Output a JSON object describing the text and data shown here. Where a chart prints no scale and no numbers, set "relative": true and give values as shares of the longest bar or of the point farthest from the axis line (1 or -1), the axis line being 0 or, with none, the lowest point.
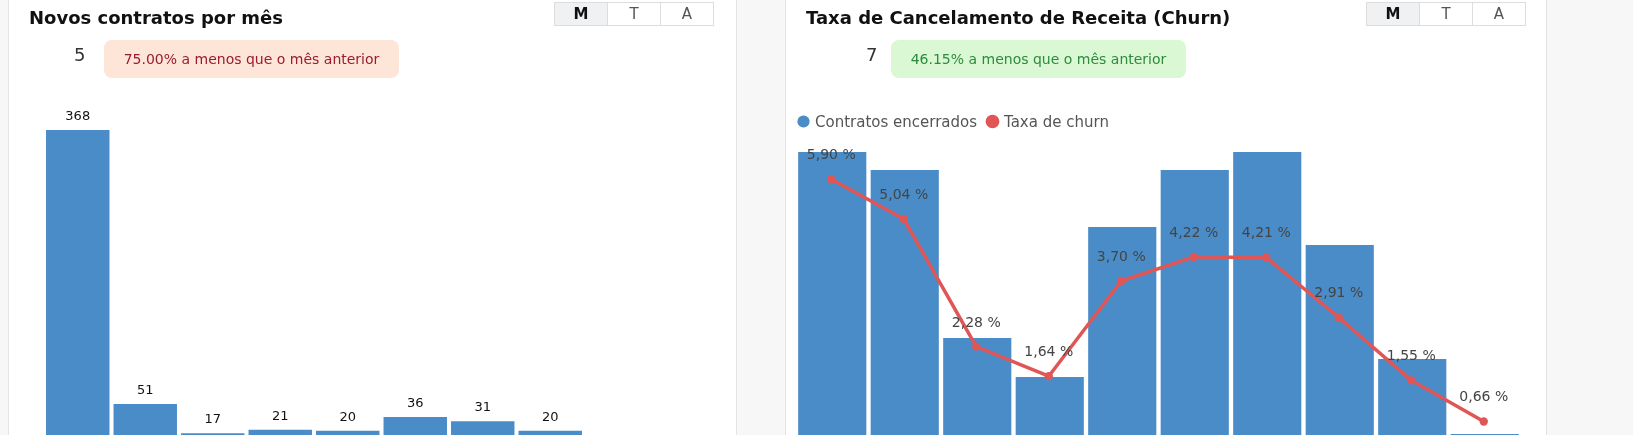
{
  "chart_data": [
    {
      "type": "bar",
      "title": "Novos contratos por mês",
      "categories": [
        null,
        null,
        null,
        null,
        null,
        null,
        null,
        null
      ],
      "series": [
        {
          "color": "#4a8cc7",
          "values": [
            368,
            51,
            17,
            21,
            20,
            36,
            31,
            20
          ]
        }
      ],
      "data_labels": true,
      "annotations": [
        "5",
        "75.00% a menos que o mês anterior",
        "M",
        "T",
        "A"
      ]
    },
    {
      "type": "bar",
      "title": "Taxa de Cancelamento de Receita (Churn)",
      "categories": [
        null,
        null,
        null,
        null,
        null,
        null,
        null,
        null,
        null,
        null
      ],
      "relative": true,
      "legend": "top left",
      "series": [
        {
          "name": "Contratos encerrados",
          "color": "#4a8cc7",
          "values": [
            1,
            0.94,
            0.38,
            0.25,
            0.75,
            0.94,
            1,
            0.69,
            0.31,
            0.06
          ]
        }
      ],
      "annotations": [
        "7",
        "46.15% a menos que o mês anterior",
        "M",
        "T",
        "A"
      ]
    },
    {
      "type": "line",
      "categories": [
        null,
        null,
        null,
        null,
        null,
        null,
        null,
        null,
        null,
        null
      ],
      "legend": "top left",
      "marker": "circle",
      "series": [
        {
          "name": "Taxa de churn",
          "color": "#e05555",
          "values": [
            5.9,
            5.04,
            2.28,
            1.64,
            3.7,
            4.22,
            4.21,
            2.91,
            1.55,
            0.66
          ],
          "value_labels": [
            "5,90 %",
            "5,04 %",
            "2,28 %",
            "1,64 %",
            "3,70 %",
            "4,22 %",
            "4,21 %",
            "2,91 %",
            "1,55 %",
            "0,66 %"
          ]
        }
      ]
    }
  ]
}
